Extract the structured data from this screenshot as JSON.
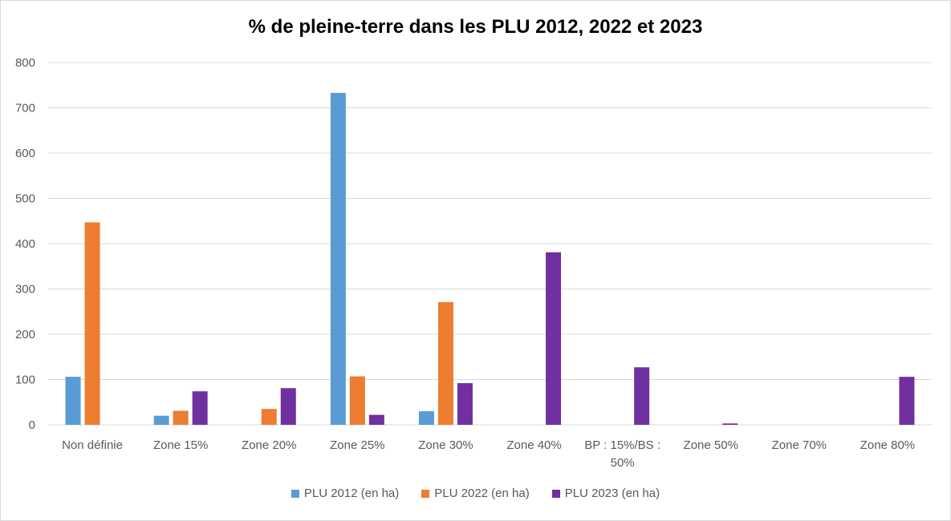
{
  "chart_data": {
    "type": "bar",
    "title": "% de pleine-terre dans les PLU 2012, 2022 et 2023",
    "xlabel": "",
    "ylabel": "",
    "ylim": [
      0,
      800
    ],
    "yticks": [
      0,
      100,
      200,
      300,
      400,
      500,
      600,
      700,
      800
    ],
    "grid": true,
    "legend_position": "bottom",
    "categories": [
      "Non définie",
      "Zone 15%",
      "Zone 20%",
      "Zone 25%",
      "Zone 30%",
      "Zone 40%",
      "BP : 15%/BS : 50%",
      "Zone 50%",
      "Zone 70%",
      "Zone 80%"
    ],
    "category_lines": [
      [
        "Non définie"
      ],
      [
        "Zone 15%"
      ],
      [
        "Zone 20%"
      ],
      [
        "Zone 25%"
      ],
      [
        "Zone 30%"
      ],
      [
        "Zone 40%"
      ],
      [
        "BP : 15%/BS :",
        "50%"
      ],
      [
        "Zone 50%"
      ],
      [
        "Zone 70%"
      ],
      [
        "Zone 80%"
      ]
    ],
    "series": [
      {
        "name": "PLU 2012 (en ha)",
        "color": "#5b9bd5",
        "values": [
          106,
          20,
          0,
          733,
          30,
          0,
          0,
          0,
          0,
          0
        ]
      },
      {
        "name": "PLU 2022 (en ha)",
        "color": "#ed7d31",
        "values": [
          447,
          31,
          35,
          107,
          271,
          0,
          0,
          0,
          0,
          0
        ]
      },
      {
        "name": "PLU 2023 (en ha)",
        "color": "#7030a0",
        "values": [
          0,
          74,
          81,
          22,
          92,
          381,
          127,
          3,
          0,
          106
        ]
      }
    ]
  }
}
